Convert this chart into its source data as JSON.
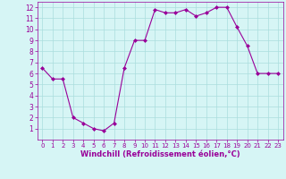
{
  "x": [
    0,
    1,
    2,
    3,
    4,
    5,
    6,
    7,
    8,
    9,
    10,
    11,
    12,
    13,
    14,
    15,
    16,
    17,
    18,
    19,
    20,
    21,
    22,
    23
  ],
  "y": [
    6.5,
    5.5,
    5.5,
    2.0,
    1.5,
    1.0,
    0.8,
    1.5,
    6.5,
    9.0,
    9.0,
    11.8,
    11.5,
    11.5,
    11.8,
    11.2,
    11.5,
    12.0,
    12.0,
    10.2,
    8.5,
    6.0,
    6.0,
    6.0
  ],
  "line_color": "#990099",
  "marker": "D",
  "marker_size": 2,
  "bg_color": "#d6f5f5",
  "grid_color": "#aadddd",
  "xlabel": "Windchill (Refroidissement éolien,°C)",
  "xlabel_color": "#990099",
  "tick_color": "#990099",
  "xlim": [
    -0.5,
    23.5
  ],
  "ylim": [
    0,
    12.5
  ],
  "yticks": [
    1,
    2,
    3,
    4,
    5,
    6,
    7,
    8,
    9,
    10,
    11,
    12
  ],
  "xticks": [
    0,
    1,
    2,
    3,
    4,
    5,
    6,
    7,
    8,
    9,
    10,
    11,
    12,
    13,
    14,
    15,
    16,
    17,
    18,
    19,
    20,
    21,
    22,
    23
  ]
}
